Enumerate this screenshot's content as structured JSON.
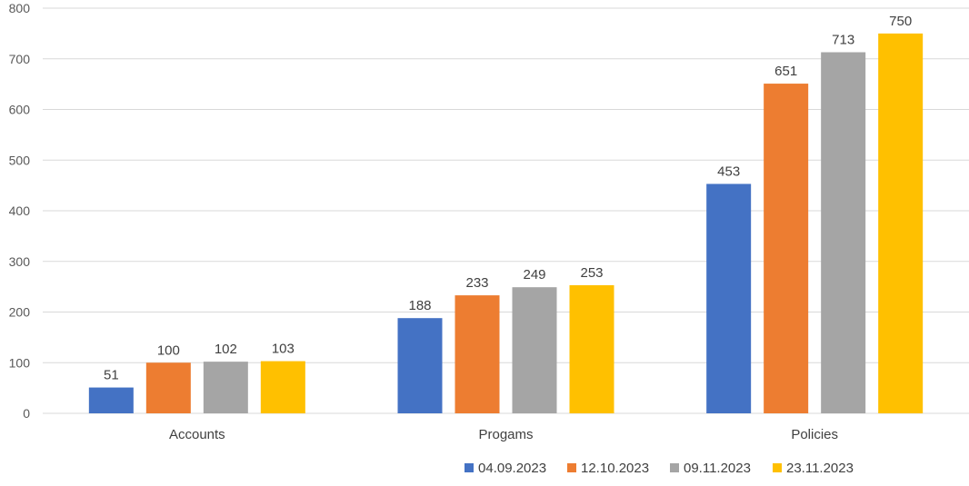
{
  "chart_data": {
    "type": "bar",
    "title": "",
    "xlabel": "",
    "ylabel": "",
    "categories": [
      "Accounts",
      "Progams",
      "Policies"
    ],
    "series": [
      {
        "name": "04.09.2023",
        "color": "#4472C4",
        "values": [
          51,
          188,
          453
        ]
      },
      {
        "name": "12.10.2023",
        "color": "#ED7D31",
        "values": [
          100,
          233,
          651
        ]
      },
      {
        "name": "09.11.2023",
        "color": "#A5A5A5",
        "values": [
          102,
          249,
          713
        ]
      },
      {
        "name": "23.11.2023",
        "color": "#FFC000",
        "values": [
          103,
          253,
          750
        ]
      }
    ],
    "ylim": [
      0,
      800
    ],
    "yticks": [
      "0",
      "100",
      "200",
      "300",
      "400",
      "500",
      "600",
      "700",
      "800"
    ],
    "grid": true,
    "legend_position": "bottom",
    "data_labels": true
  }
}
